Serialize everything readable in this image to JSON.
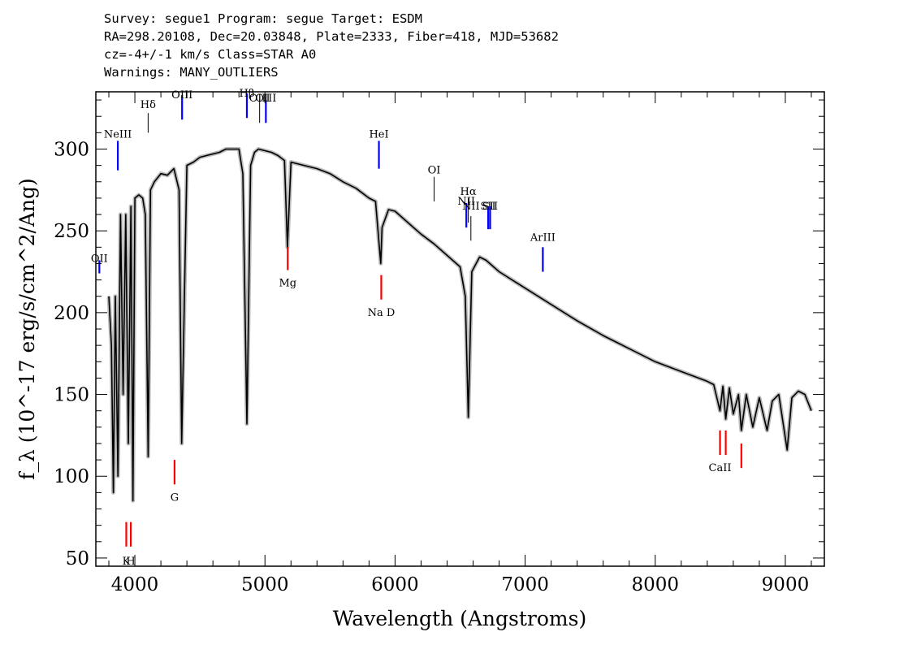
{
  "header": {
    "line1": "Survey: segue1 Program: segue Target: ESDM",
    "line2": "RA=298.20108, Dec=20.03848, Plate=2333, Fiber=418, MJD=53682",
    "line3": "cz=-4+/-1 km/s Class=STAR A0",
    "line4": "Warnings: MANY_OUTLIERS"
  },
  "chart_data": {
    "type": "line",
    "xlabel": "Wavelength (Angstroms)",
    "ylabel": "f_λ (10^-17 erg/s/cm^2/Ang)",
    "xlim": [
      3700,
      9300
    ],
    "ylim": [
      45,
      335
    ],
    "xticks": [
      4000,
      5000,
      6000,
      7000,
      8000,
      9000
    ],
    "yticks": [
      50,
      100,
      150,
      200,
      250,
      300
    ],
    "grid": false,
    "series": [
      {
        "color": "#000000",
        "x": [
          3800,
          3820,
          3835,
          3850,
          3870,
          3890,
          3910,
          3930,
          3950,
          3970,
          3985,
          4000,
          4030,
          4060,
          4080,
          4102,
          4120,
          4150,
          4200,
          4250,
          4300,
          4340,
          4360,
          4400,
          4450,
          4500,
          4550,
          4600,
          4650,
          4700,
          4750,
          4800,
          4830,
          4861,
          4890,
          4920,
          4950,
          5000,
          5050,
          5100,
          5150,
          5173,
          5200,
          5300,
          5400,
          5500,
          5600,
          5700,
          5800,
          5850,
          5890,
          5900,
          5950,
          6000,
          6100,
          6200,
          6300,
          6400,
          6500,
          6540,
          6563,
          6590,
          6650,
          6700,
          6800,
          7000,
          7200,
          7400,
          7600,
          7800,
          8000,
          8200,
          8400,
          8450,
          8498,
          8520,
          8542,
          8570,
          8600,
          8640,
          8662,
          8700,
          8750,
          8800,
          8860,
          8900,
          8950,
          9014,
          9050,
          9100,
          9150,
          9200
        ],
        "values": [
          210,
          180,
          90,
          210,
          100,
          260,
          150,
          260,
          120,
          265,
          85,
          270,
          272,
          270,
          260,
          112,
          275,
          280,
          285,
          284,
          288,
          275,
          120,
          290,
          292,
          295,
          296,
          297,
          298,
          300,
          300,
          300,
          285,
          132,
          290,
          298,
          300,
          299,
          298,
          296,
          293,
          240,
          292,
          290,
          288,
          285,
          280,
          276,
          270,
          268,
          230,
          252,
          263,
          262,
          255,
          248,
          242,
          235,
          228,
          210,
          136,
          225,
          234,
          232,
          225,
          215,
          205,
          195,
          186,
          178,
          170,
          164,
          158,
          156,
          140,
          155,
          135,
          154,
          138,
          150,
          128,
          150,
          130,
          148,
          128,
          146,
          150,
          116,
          148,
          152,
          150,
          140
        ]
      }
    ],
    "lines": [
      {
        "label": "OII",
        "x": 3727,
        "color": "#0000ff",
        "style": "bar",
        "y1": 224,
        "y2": 232,
        "ty": 231
      },
      {
        "label": "NeIII",
        "x": 3869,
        "color": "#0000ff",
        "style": "bar",
        "y1": 287,
        "y2": 305,
        "ty": 307
      },
      {
        "label": "Hδ",
        "x": 4102,
        "color": "#000000",
        "style": "thin",
        "y1": 310,
        "y2": 322,
        "ty": 325
      },
      {
        "label": "OIII",
        "x": 4363,
        "color": "#0000ff",
        "style": "bar",
        "y1": 318,
        "y2": 333,
        "ty": 331
      },
      {
        "label": "Hβ",
        "x": 4861,
        "color": "#0000ff",
        "style": "bar",
        "y1": 319,
        "y2": 334,
        "ty": 332
      },
      {
        "label": "OIII",
        "x": 4959,
        "color": "#000000",
        "style": "thin",
        "y1": 316,
        "y2": 330,
        "ty": 329
      },
      {
        "label": "OIII",
        "x": 5007,
        "color": "#0000ff",
        "style": "bar",
        "y1": 316,
        "y2": 330,
        "ty": 329
      },
      {
        "label": "HeI",
        "x": 5876,
        "color": "#0000ff",
        "style": "bar",
        "y1": 288,
        "y2": 305,
        "ty": 307
      },
      {
        "label": "OI",
        "x": 6300,
        "color": "#000000",
        "style": "thin",
        "y1": 268,
        "y2": 283,
        "ty": 285
      },
      {
        "label": "NII",
        "x": 6548,
        "color": "#0000ff",
        "style": "bar",
        "y1": 252,
        "y2": 267,
        "ty": 266
      },
      {
        "label": "Hα",
        "x": 6563,
        "color": "#000000",
        "style": "thin",
        "y1": 255,
        "y2": 270,
        "ty": 272
      },
      {
        "label": "NII",
        "x": 6583,
        "color": "#000000",
        "style": "thin",
        "y1": 244,
        "y2": 259,
        "ty": 263
      },
      {
        "label": "SII",
        "x": 6716,
        "color": "#0000ff",
        "style": "bar",
        "y1": 251,
        "y2": 265,
        "ty": 263
      },
      {
        "label": "SII",
        "x": 6731,
        "color": "#0000ff",
        "style": "bar",
        "y1": 251,
        "y2": 265,
        "ty": 263
      },
      {
        "label": "ArIII",
        "x": 7136,
        "color": "#0000ff",
        "style": "bar",
        "y1": 225,
        "y2": 240,
        "ty": 244
      },
      {
        "label": "Mg",
        "x": 5175,
        "color": "#ff0000",
        "style": "bar",
        "y1": 226,
        "y2": 240,
        "ty": 216
      },
      {
        "label": "Na D",
        "x": 5894,
        "color": "#ff0000",
        "style": "bar",
        "y1": 208,
        "y2": 223,
        "ty": 198
      },
      {
        "label": "G",
        "x": 4305,
        "color": "#ff0000",
        "style": "bar",
        "y1": 95,
        "y2": 110,
        "ty": 85
      },
      {
        "label": "K",
        "x": 3934,
        "color": "#ff0000",
        "style": "bar",
        "y1": 57,
        "y2": 72,
        "ty": 46
      },
      {
        "label": "H",
        "x": 3969,
        "color": "#ff0000",
        "style": "bar",
        "y1": 57,
        "y2": 72,
        "ty": 46
      },
      {
        "label": "CaII",
        "x": 8498,
        "color": "#ff0000",
        "style": "bar",
        "y1": 113,
        "y2": 128,
        "ty": 103
      },
      {
        "label": "",
        "x": 8542,
        "color": "#ff0000",
        "style": "bar",
        "y1": 113,
        "y2": 128,
        "ty": 103
      },
      {
        "label": "",
        "x": 8662,
        "color": "#ff0000",
        "style": "bar",
        "y1": 105,
        "y2": 120,
        "ty": 103
      }
    ]
  }
}
